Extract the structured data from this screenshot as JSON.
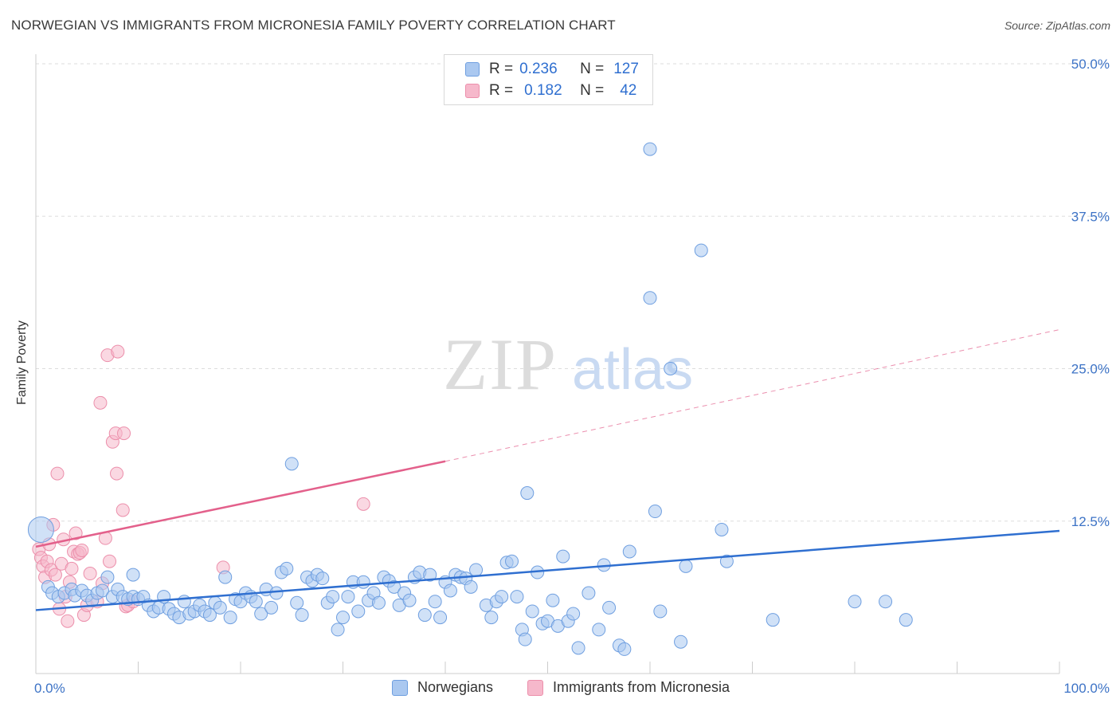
{
  "title": "NORWEGIAN VS IMMIGRANTS FROM MICRONESIA FAMILY POVERTY CORRELATION CHART",
  "source": "Source: ZipAtlas.com",
  "watermark": {
    "zip": "ZIP",
    "atlas": "atlas"
  },
  "legend_top": {
    "rows": [
      {
        "r_label": "R =",
        "r_value": "0.236",
        "n_label": "N =",
        "n_value": "127"
      },
      {
        "r_label": "R =",
        "r_value": "0.182",
        "n_label": "N =",
        "n_value": "42"
      }
    ]
  },
  "legend_bottom": {
    "series1": "Norwegians",
    "series2": "Immigrants from Micronesia"
  },
  "colors": {
    "blue_fill": "#aac8f0",
    "blue_stroke": "#6f9fe0",
    "blue_line": "#2f6fd0",
    "pink_fill": "#f6b8cb",
    "pink_stroke": "#ec8fab",
    "pink_line": "#e3608b",
    "tick": "#3d73c6",
    "grid": "#dddddd"
  },
  "chart_data": {
    "type": "scatter",
    "title": "NORWEGIAN VS IMMIGRANTS FROM MICRONESIA FAMILY POVERTY CORRELATION CHART",
    "xlabel": "",
    "ylabel": "Family Poverty",
    "xlim": [
      0,
      100
    ],
    "ylim": [
      0,
      50
    ],
    "x_tick_labels": [
      "0.0%",
      "100.0%"
    ],
    "y_ticks": [
      12.5,
      25.0,
      37.5,
      50.0
    ],
    "y_tick_labels": [
      "12.5%",
      "25.0%",
      "37.5%",
      "50.0%"
    ],
    "grid": "horizontal dashed",
    "legend_placement": "top-center and bottom",
    "series": [
      {
        "name": "Norwegians",
        "r": 0.236,
        "n": 127,
        "trend": {
          "x": [
            0,
            100
          ],
          "y": [
            5.2,
            11.7
          ],
          "style": "solid"
        },
        "points": [
          [
            0.5,
            11.8
          ],
          [
            1.2,
            7.1
          ],
          [
            1.6,
            6.6
          ],
          [
            2.2,
            6.3
          ],
          [
            2.8,
            6.6
          ],
          [
            3.5,
            6.9
          ],
          [
            3.8,
            6.4
          ],
          [
            4.5,
            6.8
          ],
          [
            5.0,
            6.4
          ],
          [
            5.5,
            6.0
          ],
          [
            6.0,
            6.6
          ],
          [
            6.5,
            6.8
          ],
          [
            7.0,
            7.9
          ],
          [
            7.5,
            6.3
          ],
          [
            8.0,
            6.9
          ],
          [
            8.5,
            6.3
          ],
          [
            9.0,
            6.1
          ],
          [
            9.5,
            6.3
          ],
          [
            9.5,
            8.1
          ],
          [
            10.0,
            6.1
          ],
          [
            10.5,
            6.3
          ],
          [
            11.0,
            5.6
          ],
          [
            11.5,
            5.1
          ],
          [
            12.0,
            5.4
          ],
          [
            12.5,
            6.3
          ],
          [
            13.0,
            5.3
          ],
          [
            13.5,
            4.9
          ],
          [
            14.0,
            4.6
          ],
          [
            14.5,
            5.9
          ],
          [
            15.0,
            4.9
          ],
          [
            15.5,
            5.1
          ],
          [
            16.0,
            5.6
          ],
          [
            16.5,
            5.1
          ],
          [
            17.0,
            4.8
          ],
          [
            17.5,
            5.8
          ],
          [
            18.0,
            5.4
          ],
          [
            18.5,
            7.9
          ],
          [
            19.0,
            4.6
          ],
          [
            19.5,
            6.1
          ],
          [
            20.0,
            5.9
          ],
          [
            20.5,
            6.6
          ],
          [
            21.0,
            6.3
          ],
          [
            21.5,
            5.9
          ],
          [
            22.0,
            4.9
          ],
          [
            22.5,
            6.9
          ],
          [
            23.0,
            5.4
          ],
          [
            23.5,
            6.6
          ],
          [
            24.0,
            8.3
          ],
          [
            24.5,
            8.6
          ],
          [
            25.0,
            17.2
          ],
          [
            25.5,
            5.8
          ],
          [
            26.0,
            4.8
          ],
          [
            26.5,
            7.9
          ],
          [
            27.0,
            7.6
          ],
          [
            27.5,
            8.1
          ],
          [
            28.0,
            7.8
          ],
          [
            28.5,
            5.8
          ],
          [
            29.0,
            6.3
          ],
          [
            29.5,
            3.6
          ],
          [
            30.0,
            4.6
          ],
          [
            30.5,
            6.3
          ],
          [
            31.0,
            7.5
          ],
          [
            31.5,
            5.1
          ],
          [
            32.0,
            7.5
          ],
          [
            32.5,
            6.0
          ],
          [
            33.0,
            6.6
          ],
          [
            33.5,
            5.8
          ],
          [
            34.0,
            7.9
          ],
          [
            34.5,
            7.6
          ],
          [
            35.0,
            7.1
          ],
          [
            35.5,
            5.6
          ],
          [
            36.0,
            6.6
          ],
          [
            36.5,
            6.0
          ],
          [
            37.0,
            7.9
          ],
          [
            37.5,
            8.3
          ],
          [
            38.0,
            4.8
          ],
          [
            38.5,
            8.1
          ],
          [
            39.0,
            5.9
          ],
          [
            39.5,
            4.6
          ],
          [
            40.0,
            7.5
          ],
          [
            40.5,
            6.8
          ],
          [
            41.0,
            8.1
          ],
          [
            41.5,
            7.9
          ],
          [
            42.0,
            7.8
          ],
          [
            42.5,
            7.1
          ],
          [
            43.0,
            8.5
          ],
          [
            44.0,
            5.6
          ],
          [
            44.5,
            4.6
          ],
          [
            45.0,
            5.9
          ],
          [
            45.5,
            6.3
          ],
          [
            46.0,
            9.1
          ],
          [
            46.5,
            9.2
          ],
          [
            47.0,
            6.3
          ],
          [
            47.5,
            3.6
          ],
          [
            47.8,
            2.8
          ],
          [
            48.0,
            14.8
          ],
          [
            48.5,
            5.1
          ],
          [
            49.0,
            8.3
          ],
          [
            49.5,
            4.1
          ],
          [
            50.0,
            4.3
          ],
          [
            50.5,
            6.0
          ],
          [
            51.0,
            3.9
          ],
          [
            51.5,
            9.6
          ],
          [
            52.0,
            4.3
          ],
          [
            52.5,
            4.9
          ],
          [
            53.0,
            2.1
          ],
          [
            54.0,
            6.6
          ],
          [
            55.0,
            3.6
          ],
          [
            55.5,
            8.9
          ],
          [
            56.0,
            5.4
          ],
          [
            57.0,
            2.3
          ],
          [
            57.5,
            2.0
          ],
          [
            58.0,
            10.0
          ],
          [
            60.0,
            43.0
          ],
          [
            60.5,
            13.3
          ],
          [
            61.0,
            5.1
          ],
          [
            62.0,
            25.0
          ],
          [
            63.0,
            2.6
          ],
          [
            63.5,
            8.8
          ],
          [
            65.0,
            34.7
          ],
          [
            67.0,
            11.8
          ],
          [
            67.5,
            9.2
          ],
          [
            60.0,
            30.8
          ],
          [
            72.0,
            4.4
          ],
          [
            80.0,
            5.9
          ],
          [
            83.0,
            5.9
          ],
          [
            85.0,
            4.4
          ]
        ]
      },
      {
        "name": "Immigrants from Micronesia",
        "r": 0.182,
        "n": 42,
        "trend": {
          "x": [
            0,
            40
          ],
          "y": [
            10.4,
            17.4
          ],
          "x_dashed_end": 100,
          "y_dashed_end": 28.2,
          "style": "solid then dashed"
        },
        "points": [
          [
            0.3,
            10.2
          ],
          [
            0.5,
            9.5
          ],
          [
            0.7,
            8.8
          ],
          [
            0.9,
            7.9
          ],
          [
            1.1,
            9.2
          ],
          [
            1.3,
            10.6
          ],
          [
            1.5,
            8.5
          ],
          [
            1.7,
            12.2
          ],
          [
            1.9,
            8.1
          ],
          [
            2.1,
            16.4
          ],
          [
            2.3,
            5.3
          ],
          [
            2.5,
            9.0
          ],
          [
            2.7,
            11.0
          ],
          [
            2.9,
            6.3
          ],
          [
            3.1,
            4.3
          ],
          [
            3.3,
            7.5
          ],
          [
            3.5,
            8.6
          ],
          [
            3.7,
            10.0
          ],
          [
            3.9,
            11.5
          ],
          [
            4.1,
            9.8
          ],
          [
            4.3,
            9.9
          ],
          [
            4.5,
            10.1
          ],
          [
            4.7,
            4.8
          ],
          [
            5.0,
            5.6
          ],
          [
            5.3,
            8.2
          ],
          [
            6.0,
            5.9
          ],
          [
            6.3,
            22.2
          ],
          [
            6.5,
            7.4
          ],
          [
            6.8,
            11.1
          ],
          [
            7.0,
            26.1
          ],
          [
            7.2,
            9.2
          ],
          [
            7.5,
            19.0
          ],
          [
            7.8,
            19.7
          ],
          [
            7.9,
            16.4
          ],
          [
            8.0,
            26.4
          ],
          [
            8.5,
            13.4
          ],
          [
            8.6,
            19.7
          ],
          [
            8.8,
            5.5
          ],
          [
            9.0,
            5.6
          ],
          [
            9.5,
            5.9
          ],
          [
            18.3,
            8.7
          ],
          [
            32.0,
            13.9
          ]
        ]
      }
    ]
  }
}
